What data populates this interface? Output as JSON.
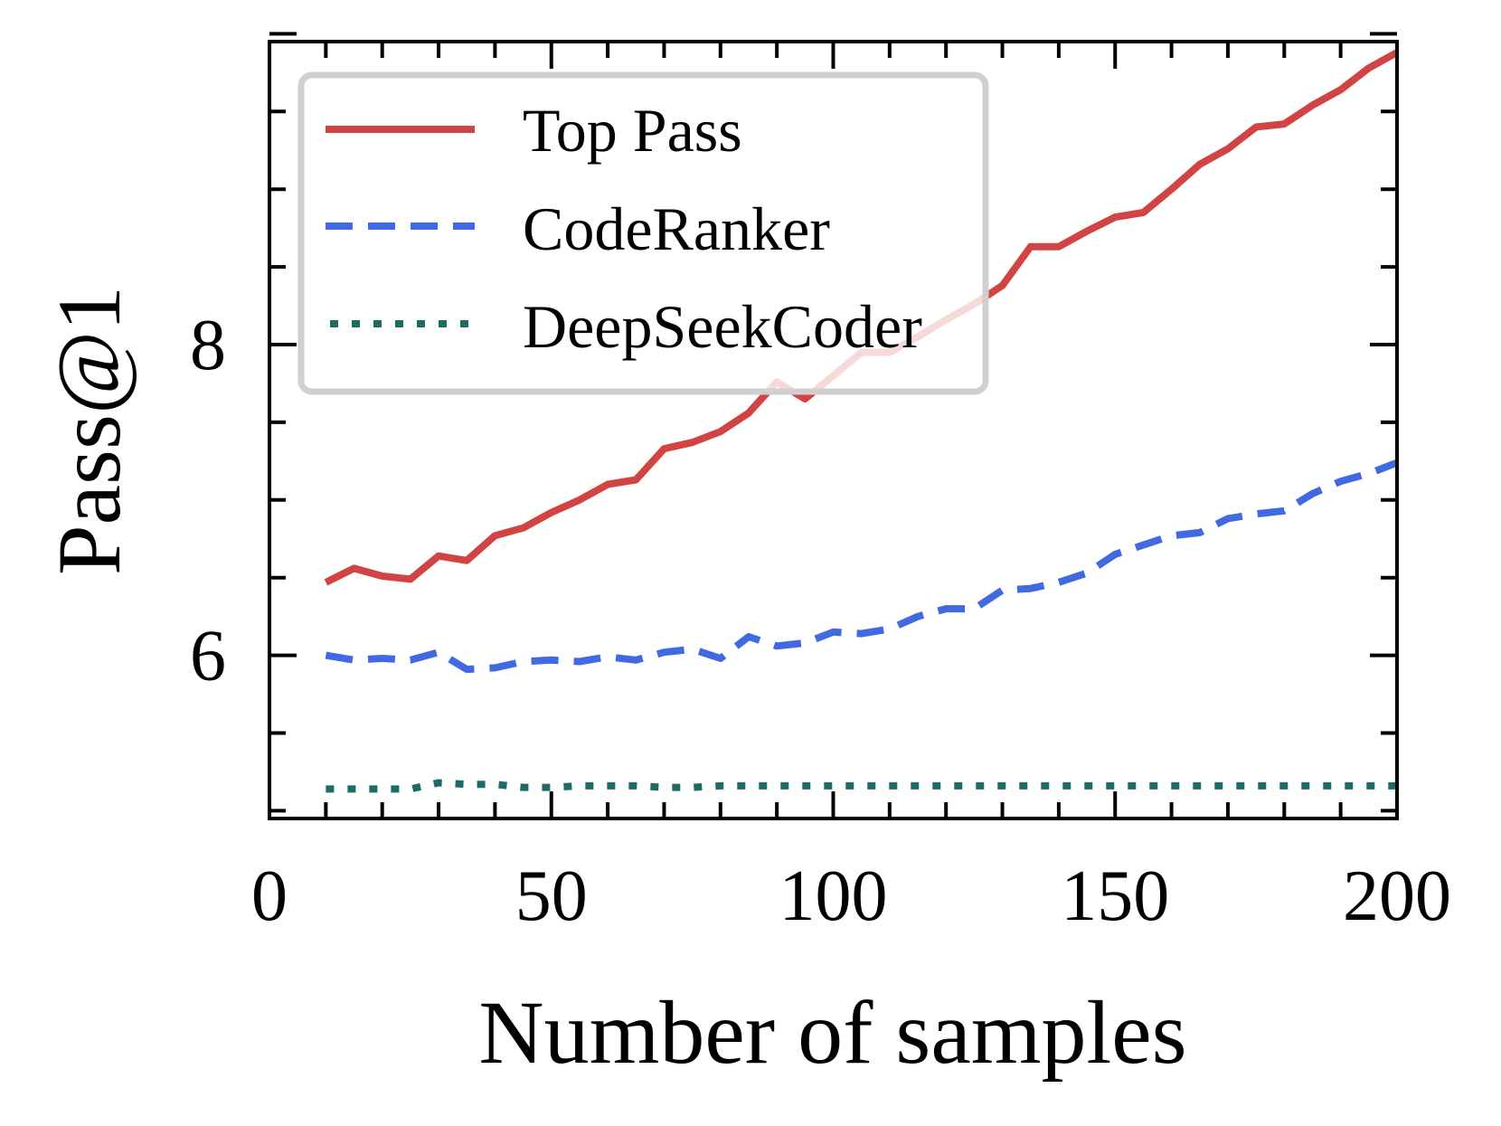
{
  "chart_data": {
    "type": "line",
    "title": "",
    "xlabel": "Number of samples",
    "ylabel": "Pass@1",
    "xlim": [
      0,
      200
    ],
    "ylim": [
      4.95,
      9.95
    ],
    "xticks": [
      0,
      50,
      100,
      150,
      200
    ],
    "yticks": [
      6,
      8
    ],
    "grid": false,
    "legend_position": "top-left",
    "x": [
      10,
      15,
      20,
      25,
      30,
      35,
      40,
      45,
      50,
      55,
      60,
      65,
      70,
      75,
      80,
      85,
      90,
      95,
      100,
      105,
      110,
      115,
      120,
      125,
      130,
      135,
      140,
      145,
      150,
      155,
      160,
      165,
      170,
      175,
      180,
      185,
      190,
      195,
      200
    ],
    "series": [
      {
        "name": "Top Pass",
        "color": "#d24343",
        "style": "solid",
        "values": [
          6.47,
          6.56,
          6.51,
          6.49,
          6.64,
          6.61,
          6.77,
          6.82,
          6.92,
          7.0,
          7.1,
          7.13,
          7.33,
          7.37,
          7.44,
          7.56,
          7.76,
          7.65,
          7.8,
          7.95,
          7.95,
          8.05,
          8.16,
          8.26,
          8.38,
          8.63,
          8.63,
          8.73,
          8.82,
          8.85,
          9.0,
          9.16,
          9.26,
          9.4,
          9.42,
          9.54,
          9.64,
          9.78,
          9.88
        ]
      },
      {
        "name": "CodeRanker",
        "color": "#4169e1",
        "style": "dashed",
        "values": [
          6.0,
          5.97,
          5.98,
          5.97,
          6.02,
          5.91,
          5.92,
          5.96,
          5.97,
          5.96,
          5.99,
          5.97,
          6.02,
          6.04,
          5.98,
          6.12,
          6.06,
          6.08,
          6.15,
          6.14,
          6.17,
          6.25,
          6.3,
          6.3,
          6.42,
          6.43,
          6.47,
          6.53,
          6.65,
          6.71,
          6.77,
          6.79,
          6.88,
          6.91,
          6.93,
          7.04,
          7.12,
          7.17,
          7.24
        ]
      },
      {
        "name": "DeepSeekCoder",
        "color": "#1b6d63",
        "style": "dotted",
        "values": [
          5.14,
          5.14,
          5.14,
          5.14,
          5.18,
          5.17,
          5.17,
          5.15,
          5.15,
          5.16,
          5.16,
          5.16,
          5.15,
          5.15,
          5.16,
          5.16,
          5.16,
          5.16,
          5.16,
          5.16,
          5.16,
          5.16,
          5.16,
          5.16,
          5.16,
          5.16,
          5.16,
          5.16,
          5.16,
          5.16,
          5.16,
          5.16,
          5.16,
          5.16,
          5.16,
          5.16,
          5.16,
          5.16,
          5.16
        ]
      }
    ]
  }
}
